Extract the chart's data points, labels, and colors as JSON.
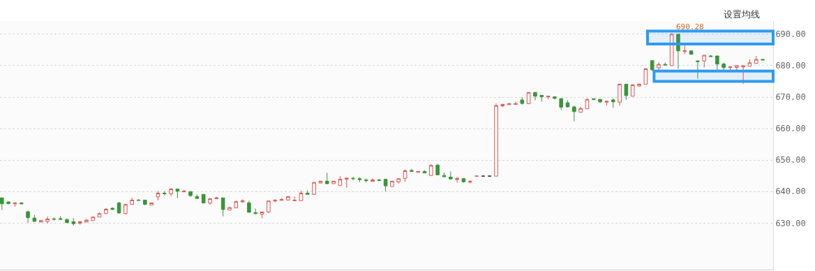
{
  "chart_data": {
    "type": "candlestick",
    "categories": [
      null,
      null,
      null,
      null,
      null,
      null,
      null,
      null,
      null,
      null,
      null,
      null,
      null,
      null,
      null,
      null,
      null,
      null,
      null,
      null,
      null,
      null,
      null,
      null,
      null,
      null,
      null,
      null,
      null,
      null,
      null,
      null,
      null,
      null,
      null,
      null,
      null,
      null,
      null,
      null,
      null,
      null,
      null,
      null,
      null,
      null,
      null,
      null,
      null,
      null,
      null,
      null,
      null,
      null,
      null,
      null,
      null,
      null,
      null,
      null,
      null,
      null,
      null,
      null,
      null,
      null,
      null,
      null,
      null,
      null,
      null,
      null,
      null,
      null,
      null,
      null,
      null,
      null,
      null,
      null,
      null,
      null,
      null,
      null,
      null,
      null,
      null,
      null,
      null,
      null,
      null,
      null,
      null,
      null,
      null,
      null,
      null,
      null,
      null,
      null,
      null,
      null,
      null,
      null,
      null,
      null,
      null,
      null,
      null,
      null,
      null,
      null,
      null,
      null,
      null,
      null,
      null,
      null
    ],
    "ohlc": [
      [
        638.0,
        638.0,
        634.1,
        636.1
      ],
      [
        636.7,
        636.9,
        635.9,
        636.2
      ],
      [
        636.1,
        636.6,
        635.2,
        636.4
      ],
      [
        636.4,
        636.6,
        636.1,
        636.1
      ],
      [
        633.6,
        633.9,
        630.0,
        631.7
      ],
      [
        631.6,
        632.6,
        630.5,
        630.5
      ],
      [
        630.3,
        630.8,
        630.3,
        630.8
      ],
      [
        630.5,
        632.1,
        629.9,
        631.3
      ],
      [
        631.3,
        631.8,
        630.8,
        631.2
      ],
      [
        631.4,
        632.2,
        630.9,
        631.2
      ],
      [
        631.1,
        631.5,
        630.1,
        630.1
      ],
      [
        630.4,
        631.6,
        629.2,
        629.8
      ],
      [
        629.9,
        630.6,
        629.5,
        630.4
      ],
      [
        630.3,
        631.3,
        630.3,
        630.9
      ],
      [
        630.8,
        632.0,
        630.8,
        631.9
      ],
      [
        631.9,
        633.4,
        631.9,
        633.0
      ],
      [
        633.0,
        634.7,
        633.0,
        634.4
      ],
      [
        634.7,
        635.0,
        634.1,
        634.3
      ],
      [
        636.4,
        636.7,
        633.0,
        633.2
      ],
      [
        633.0,
        636.1,
        632.8,
        635.9
      ],
      [
        635.9,
        638.0,
        635.9,
        637.3
      ],
      [
        637.3,
        637.6,
        637.2,
        637.2
      ],
      [
        637.3,
        637.3,
        635.7,
        635.9
      ],
      [
        635.7,
        636.4,
        635.7,
        636.4
      ],
      [
        638.3,
        640.2,
        637.2,
        639.5
      ],
      [
        639.5,
        640.1,
        638.8,
        639.3
      ],
      [
        639.3,
        641.1,
        638.6,
        640.8
      ],
      [
        640.8,
        640.8,
        637.9,
        640.1
      ],
      [
        639.9,
        640.5,
        639.9,
        640.1
      ],
      [
        640.0,
        640.0,
        638.3,
        638.7
      ],
      [
        638.4,
        639.1,
        637.8,
        637.8
      ],
      [
        639.1,
        639.1,
        636.2,
        636.4
      ],
      [
        636.3,
        637.7,
        635.8,
        637.7
      ],
      [
        637.7,
        638.4,
        637.7,
        638.0
      ],
      [
        638.0,
        638.0,
        632.1,
        634.3
      ],
      [
        634.1,
        635.2,
        634.1,
        634.9
      ],
      [
        634.8,
        637.1,
        634.8,
        636.8
      ],
      [
        636.7,
        637.5,
        636.5,
        637.1
      ],
      [
        636.4,
        637.1,
        633.4,
        633.4
      ],
      [
        633.3,
        634.6,
        632.7,
        633.0
      ],
      [
        632.8,
        633.5,
        631.5,
        633.5
      ],
      [
        633.5,
        637.0,
        633.2,
        637.0
      ],
      [
        637.0,
        637.6,
        636.6,
        637.2
      ],
      [
        637.2,
        637.9,
        637.2,
        637.5
      ],
      [
        637.3,
        638.4,
        637.3,
        638.4
      ],
      [
        637.1,
        638.4,
        637.1,
        637.2
      ],
      [
        637.1,
        640.2,
        637.1,
        639.5
      ],
      [
        639.5,
        640.4,
        639.1,
        639.1
      ],
      [
        639.1,
        643.1,
        639.1,
        642.9
      ],
      [
        642.7,
        643.3,
        642.7,
        643.3
      ],
      [
        643.3,
        646.0,
        642.3,
        642.5
      ],
      [
        642.5,
        643.3,
        642.5,
        643.3
      ],
      [
        641.9,
        644.9,
        641.9,
        643.9
      ],
      [
        643.9,
        644.3,
        641.2,
        644.3
      ],
      [
        644.2,
        644.7,
        643.6,
        644.1
      ],
      [
        644.1,
        644.6,
        643.0,
        643.8
      ],
      [
        643.7,
        644.1,
        642.8,
        643.5
      ],
      [
        643.2,
        644.2,
        643.2,
        643.7
      ],
      [
        643.7,
        644.0,
        643.3,
        643.5
      ],
      [
        643.9,
        643.9,
        640.1,
        641.8
      ],
      [
        641.6,
        643.3,
        641.6,
        643.3
      ],
      [
        643.1,
        644.1,
        642.5,
        644.1
      ],
      [
        644.2,
        647.0,
        643.1,
        646.6
      ],
      [
        646.7,
        647.2,
        646.4,
        646.4
      ],
      [
        646.1,
        646.4,
        646.1,
        646.4
      ],
      [
        646.4,
        646.7,
        645.9,
        645.9
      ],
      [
        645.1,
        648.7,
        645.1,
        648.3
      ],
      [
        648.4,
        648.8,
        645.3,
        645.3
      ],
      [
        645.1,
        646.0,
        644.7,
        644.7
      ],
      [
        644.6,
        646.4,
        643.8,
        644.0
      ],
      [
        643.8,
        644.6,
        642.8,
        644.2
      ],
      [
        644.1,
        644.3,
        642.8,
        643.1
      ],
      [
        643.0,
        643.6,
        642.6,
        643.2
      ],
      [
        644.9,
        644.9,
        644.9,
        644.9
      ],
      [
        644.9,
        644.9,
        644.9,
        644.9
      ],
      [
        644.9,
        644.9,
        644.9,
        644.9
      ],
      [
        644.9,
        668.0,
        644.9,
        667.3
      ],
      [
        667.2,
        667.9,
        666.8,
        667.7
      ],
      [
        667.6,
        668.2,
        667.6,
        667.9
      ],
      [
        667.7,
        668.6,
        667.7,
        667.9
      ],
      [
        669.1,
        670.0,
        667.6,
        668.0
      ],
      [
        667.9,
        671.5,
        667.9,
        671.5
      ],
      [
        671.5,
        671.5,
        669.0,
        670.3
      ],
      [
        670.6,
        670.6,
        668.6,
        670.1
      ],
      [
        670.1,
        670.3,
        669.3,
        670.3
      ],
      [
        670.1,
        670.1,
        669.3,
        669.6
      ],
      [
        669.5,
        669.7,
        665.9,
        666.8
      ],
      [
        668.2,
        669.0,
        666.7,
        666.9
      ],
      [
        666.9,
        667.3,
        662.3,
        665.4
      ],
      [
        665.2,
        666.9,
        665.2,
        666.4
      ],
      [
        666.3,
        669.5,
        666.3,
        669.3
      ],
      [
        669.5,
        669.5,
        669.0,
        669.3
      ],
      [
        669.3,
        669.3,
        668.1,
        668.5
      ],
      [
        668.4,
        668.8,
        667.3,
        668.7
      ],
      [
        669.1,
        669.6,
        666.6,
        668.5
      ],
      [
        668.4,
        674.1,
        667.3,
        674.1
      ],
      [
        674.1,
        674.1,
        669.1,
        670.5
      ],
      [
        670.3,
        673.9,
        670.3,
        673.9
      ],
      [
        673.5,
        674.3,
        673.5,
        674.1
      ],
      [
        674.1,
        679.0,
        674.1,
        679.0
      ],
      [
        681.6,
        681.6,
        678.3,
        678.7
      ],
      [
        679.3,
        681.0,
        678.3,
        680.4
      ],
      [
        680.4,
        681.0,
        680.2,
        680.2
      ],
      [
        680.0,
        690.28,
        680.0,
        690.0
      ],
      [
        690.0,
        690.0,
        679.0,
        684.7
      ],
      [
        684.5,
        686.4,
        683.6,
        684.7
      ],
      [
        684.7,
        684.7,
        683.6,
        683.6
      ],
      [
        681.5,
        681.7,
        675.9,
        681.3
      ],
      [
        681.5,
        683.3,
        679.4,
        683.3
      ],
      [
        683.1,
        683.3,
        682.9,
        682.9
      ],
      [
        683.1,
        683.1,
        678.3,
        680.5
      ],
      [
        680.5,
        681.0,
        678.3,
        679.4
      ],
      [
        679.4,
        679.6,
        678.6,
        679.6
      ],
      [
        679.4,
        680.0,
        678.6,
        680.0
      ],
      [
        679.6,
        680.0,
        674.2,
        680.0
      ],
      [
        679.8,
        682.0,
        679.8,
        680.9
      ],
      [
        680.7,
        683.1,
        680.7,
        682.0
      ],
      [
        682.0,
        682.0,
        681.8,
        681.8
      ]
    ],
    "colors": [
      "#3a943a",
      "#3a943a",
      "#d9534f",
      "#3a943a",
      "#3a943a",
      "#3a943a",
      "#d9534f",
      "#d9534f",
      "#3a943a",
      "#3a943a",
      "#3a943a",
      "#3a943a",
      "#d9534f",
      "#d9534f",
      "#d9534f",
      "#d9534f",
      "#d9534f",
      "#3a943a",
      "#3a943a",
      "#d9534f",
      "#d9534f",
      "#3a943a",
      "#3a943a",
      "#d9534f",
      "#d9534f",
      "#3a943a",
      "#d9534f",
      "#3a943a",
      "#d9534f",
      "#3a943a",
      "#3a943a",
      "#3a943a",
      "#d9534f",
      "#d9534f",
      "#3a943a",
      "#d9534f",
      "#d9534f",
      "#d9534f",
      "#3a943a",
      "#3a943a",
      "#d9534f",
      "#d9534f",
      "#d9534f",
      "#d9534f",
      "#d9534f",
      "#d9534f",
      "#d9534f",
      "#3a943a",
      "#d9534f",
      "#d9534f",
      "#3a943a",
      "#d9534f",
      "#d9534f",
      "#d9534f",
      "#3a943a",
      "#3a943a",
      "#3a943a",
      "#d9534f",
      "#3a943a",
      "#3a943a",
      "#d9534f",
      "#d9534f",
      "#d9534f",
      "#3a943a",
      "#d9534f",
      "#3a943a",
      "#d9534f",
      "#3a943a",
      "#3a943a",
      "#3a943a",
      "#d9534f",
      "#3a943a",
      "#d9534f",
      "#d9534f",
      "#333333",
      "#333333",
      "#d9534f",
      "#d9534f",
      "#d9534f",
      "#d9534f",
      "#3a943a",
      "#d9534f",
      "#3a943a",
      "#3a943a",
      "#d9534f",
      "#3a943a",
      "#3a943a",
      "#3a943a",
      "#3a943a",
      "#d9534f",
      "#d9534f",
      "#3a943a",
      "#3a943a",
      "#d9534f",
      "#3a943a",
      "#d9534f",
      "#3a943a",
      "#d9534f",
      "#d9534f",
      "#d9534f",
      "#3a943a",
      "#d9534f",
      "#3a943a",
      "#d9534f",
      "#3a943a",
      "#d9534f",
      "#3a943a",
      "#3a943a",
      "#d9534f",
      "#3a943a",
      "#3a943a",
      "#3a943a",
      "#d9534f",
      "#d9534f",
      "#d9534f",
      "#d9534f",
      "#d9534f",
      "#3a943a"
    ],
    "ylim": [
      615.2,
      694.2
    ],
    "yticks": [
      {
        "value": 630,
        "label": "630.00"
      },
      {
        "value": 640,
        "label": "640.00"
      },
      {
        "value": 650,
        "label": "650.00"
      },
      {
        "value": 660,
        "label": "660.00"
      },
      {
        "value": 670,
        "label": "670.00"
      },
      {
        "value": 680,
        "label": "680.00"
      },
      {
        "value": 690,
        "label": "690.00"
      }
    ],
    "grid": "y",
    "tick_labels": "y",
    "annotations": [
      "设置均线",
      "690.28"
    ],
    "bands": [
      {
        "axis": "y",
        "from": 686.9,
        "to": 691.0,
        "color": "#2e9bf0"
      },
      {
        "axis": "y",
        "from": 675.0,
        "to": 678.3,
        "color": "#2e9bf0"
      }
    ]
  }
}
